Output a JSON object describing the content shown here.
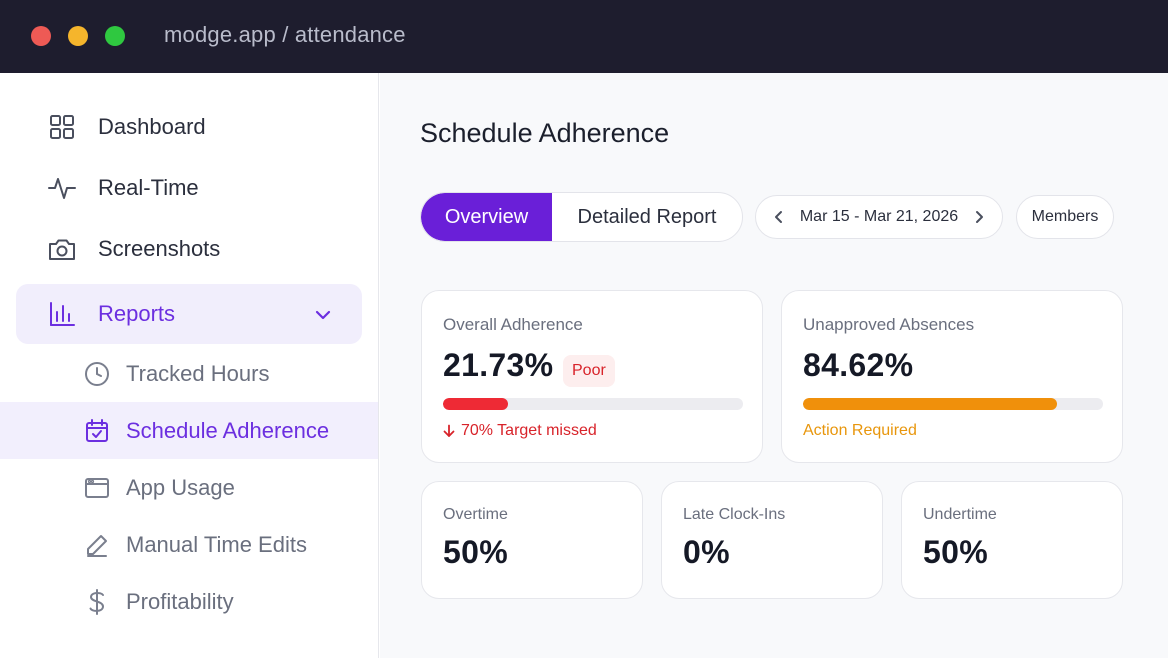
{
  "window": {
    "url": "modge.app / attendance"
  },
  "sidebar": {
    "items": [
      {
        "label": "Dashboard",
        "icon": "grid-icon"
      },
      {
        "label": "Real-Time",
        "icon": "activity-icon"
      },
      {
        "label": "Screenshots",
        "icon": "camera-icon"
      },
      {
        "label": "Reports",
        "icon": "bar-chart-icon",
        "expanded": true
      }
    ],
    "subitems": [
      {
        "label": "Tracked Hours",
        "icon": "clock-icon"
      },
      {
        "label": "Schedule Adherence",
        "icon": "calendar-check-icon",
        "active": true
      },
      {
        "label": "App Usage",
        "icon": "browser-window-icon"
      },
      {
        "label": "Manual Time Edits",
        "icon": "pencil-icon"
      },
      {
        "label": "Profitability",
        "icon": "dollar-icon"
      }
    ]
  },
  "main": {
    "title": "Schedule Adherence",
    "tabs": [
      {
        "label": "Overview",
        "active": true
      },
      {
        "label": "Detailed Report",
        "active": false
      }
    ],
    "date_range": "Mar 15 - Mar 21, 2026",
    "members_label": "Members",
    "cards": {
      "overall": {
        "label": "Overall Adherence",
        "value": "21.73%",
        "badge": "Poor",
        "progress": 0.2173,
        "note": "70% Target missed",
        "bar_color": "#ee2a35",
        "note_color": "#d8232a"
      },
      "unapproved": {
        "label": "Unapproved Absences",
        "value": "84.62%",
        "progress": 0.8462,
        "note": "Action Required",
        "bar_color": "#f0900b",
        "note_color": "#e8960c"
      },
      "overtime": {
        "label": "Overtime",
        "value": "50%"
      },
      "late": {
        "label": "Late Clock-Ins",
        "value": "0%"
      },
      "undertime": {
        "label": "Undertime",
        "value": "50%"
      }
    }
  },
  "colors": {
    "accent": "#6a1fd8",
    "titlebar": "#1e1d2e"
  }
}
